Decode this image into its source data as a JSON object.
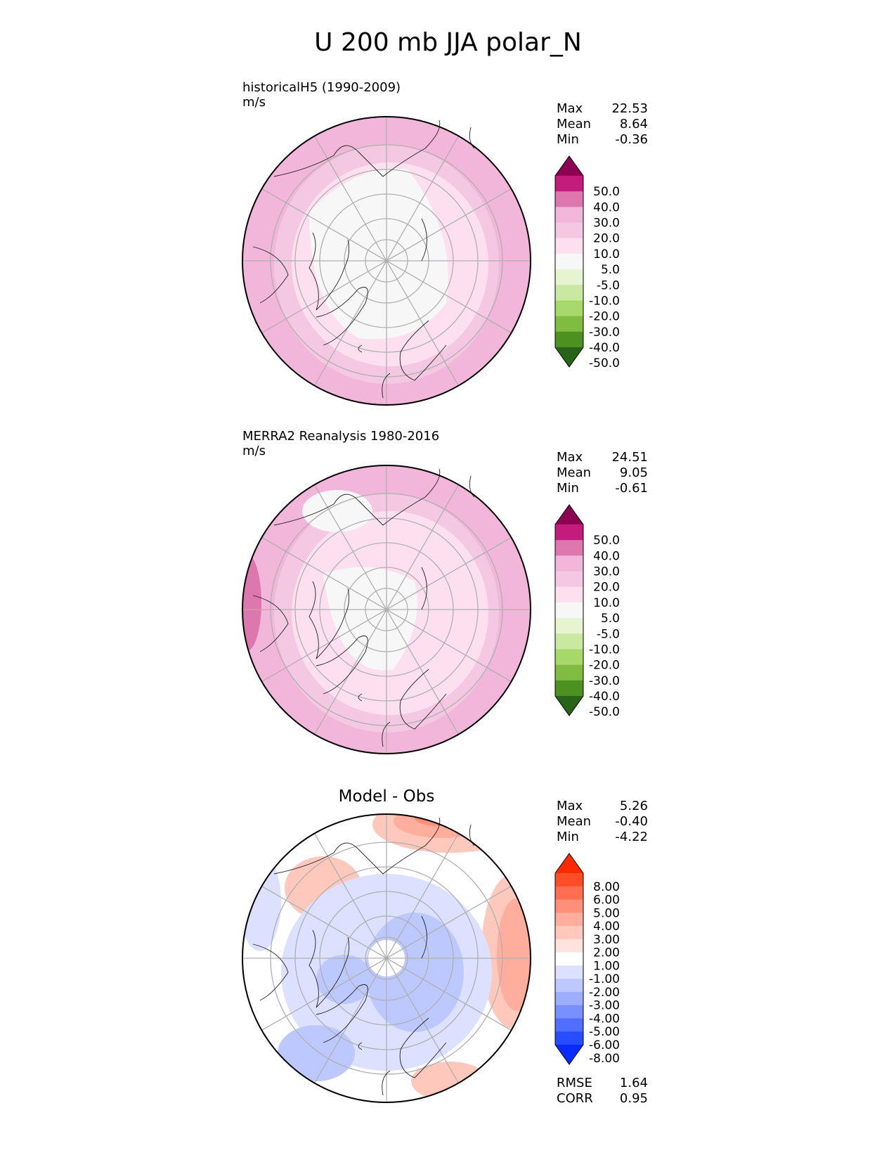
{
  "title": "U 200 mb JJA polar_N",
  "panels": [
    {
      "id": "test",
      "heading": "",
      "subtitle": "historicalH5 (1990-2009)",
      "units": "m/s",
      "stats": [
        {
          "label": "Max",
          "value": "22.53"
        },
        {
          "label": "Mean",
          "value": "8.64"
        },
        {
          "label": "Min",
          "value": "-0.36"
        }
      ],
      "colorbar": {
        "labels": [
          "50.0",
          "40.0",
          "30.0",
          "20.0",
          "10.0",
          "5.0",
          "-5.0",
          "-10.0",
          "-20.0",
          "-30.0",
          "-40.0",
          "-50.0"
        ],
        "colors": [
          "#8e0152",
          "#c51b7d",
          "#de77ae",
          "#f1b6da",
          "#f4c7e2",
          "#fde0ef",
          "#f7f7f7",
          "#e6f5d0",
          "#c9e8a0",
          "#a6d96a",
          "#7fbc41",
          "#4d9221",
          "#276419"
        ]
      },
      "field_colors": {
        "outer": "#f1b6da",
        "mid": "#f4c7e2",
        "inner": "#fde0ef",
        "core": "#f7f7f7",
        "strong": "#de77ae"
      }
    },
    {
      "id": "reference",
      "heading": "",
      "subtitle": "MERRA2 Reanalysis 1980-2016",
      "units": "m/s",
      "stats": [
        {
          "label": "Max",
          "value": "24.51"
        },
        {
          "label": "Mean",
          "value": "9.05"
        },
        {
          "label": "Min",
          "value": "-0.61"
        }
      ],
      "colorbar": {
        "labels": [
          "50.0",
          "40.0",
          "30.0",
          "20.0",
          "10.0",
          "5.0",
          "-5.0",
          "-10.0",
          "-20.0",
          "-30.0",
          "-40.0",
          "-50.0"
        ],
        "colors": [
          "#8e0152",
          "#c51b7d",
          "#de77ae",
          "#f1b6da",
          "#f4c7e2",
          "#fde0ef",
          "#f7f7f7",
          "#e6f5d0",
          "#c9e8a0",
          "#a6d96a",
          "#7fbc41",
          "#4d9221",
          "#276419"
        ]
      },
      "field_colors": {
        "outer": "#f1b6da",
        "mid": "#f4c7e2",
        "inner": "#fde0ef",
        "core": "#f7f7f7",
        "strong": "#de77ae"
      }
    },
    {
      "id": "diff",
      "heading": "Model - Obs",
      "subtitle": "",
      "units": "",
      "stats": [
        {
          "label": "Max",
          "value": "5.26"
        },
        {
          "label": "Mean",
          "value": "-0.40"
        },
        {
          "label": "Min",
          "value": "-4.22"
        }
      ],
      "colorbar": {
        "labels": [
          "8.00",
          "6.00",
          "5.00",
          "4.00",
          "3.00",
          "2.00",
          "1.00",
          "-1.00",
          "-2.00",
          "-3.00",
          "-4.00",
          "-5.00",
          "-6.00",
          "-8.00"
        ],
        "colors": [
          "#ff2a00",
          "#ff4d26",
          "#ff6e50",
          "#ff8f78",
          "#ffad9d",
          "#ffc8bd",
          "#ffe2db",
          "#ffffff",
          "#dbe1ff",
          "#bdc8ff",
          "#9dadff",
          "#788fff",
          "#506eff",
          "#264dff",
          "#0a2aff"
        ]
      },
      "field_colors": {
        "pos1": "#ffc8bd",
        "pos2": "#ffad9d",
        "pos3": "#ff8f78",
        "neg1": "#dbe1ff",
        "neg2": "#bdc8ff",
        "neg3": "#9dadff",
        "base": "#ffffff"
      }
    }
  ],
  "metrics": [
    {
      "label": "RMSE",
      "value": "1.64"
    },
    {
      "label": "CORR",
      "value": "0.95"
    }
  ]
}
